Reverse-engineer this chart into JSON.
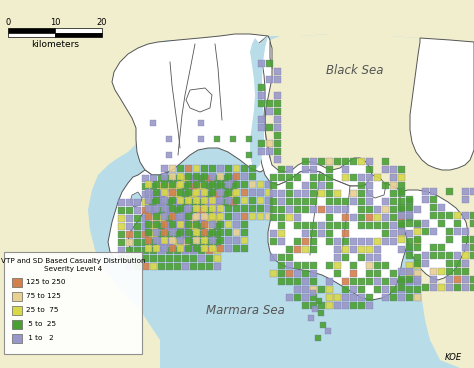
{
  "bg_sea_color": "#b8dce8",
  "bg_land_color": "#f0eecc",
  "map_land_color": "#ffffff",
  "map_border_color": "#555555",
  "black_sea_label": "Black Sea",
  "marmara_sea_label": "Marmara Sea",
  "scale_label": "kilometers",
  "scale_ticks": [
    "0",
    "10",
    "20"
  ],
  "legend_title_line1": "VTP and SD Based Casualty Distribution",
  "legend_title_line2": "Severity Level 4",
  "legend_items": [
    {
      "label": "125 to 250",
      "color": "#d4804a"
    },
    {
      "label": "75 to 125",
      "color": "#e8d090"
    },
    {
      "label": "25 to  75",
      "color": "#d8d848"
    },
    {
      "label": " 5 to  25",
      "color": "#48a030"
    },
    {
      "label": " 1 to   2",
      "color": "#9898c8"
    }
  ],
  "grid_colors": {
    "orange": "#d4804a",
    "tan": "#e8d090",
    "yellow": "#d8d848",
    "green": "#48a030",
    "blue": "#9898c8"
  },
  "figsize": [
    4.74,
    3.68
  ],
  "dpi": 100
}
